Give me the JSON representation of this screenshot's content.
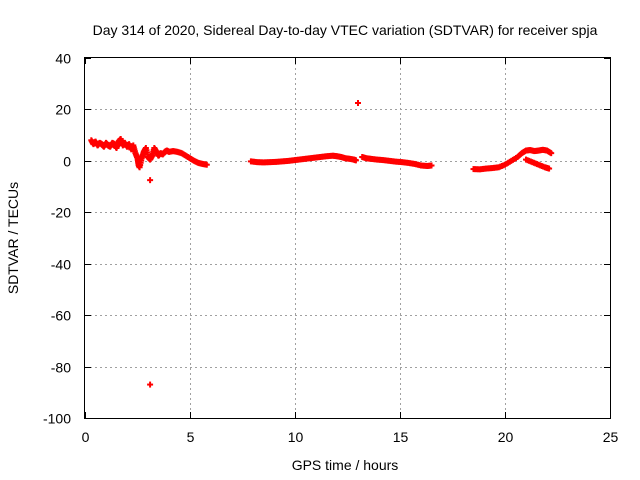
{
  "chart_data": {
    "type": "scatter",
    "title": "Day 314 of 2020, Sidereal Day-to-day VTEC variation (SDTVAR) for receiver spja",
    "xlabel": "GPS time / hours",
    "ylabel": "SDTVAR / TECUs",
    "xlim": [
      0,
      25
    ],
    "ylim": [
      -100,
      40
    ],
    "xticks": [
      0,
      5,
      10,
      15,
      20,
      25
    ],
    "yticks": [
      -100,
      -80,
      -60,
      -40,
      -20,
      0,
      20,
      40
    ],
    "grid": true,
    "marker": "+",
    "color": "#ff0000",
    "series": [
      {
        "name": "SDTVAR",
        "points": [
          [
            0.3,
            8.0
          ],
          [
            0.4,
            6.5
          ],
          [
            0.5,
            7.5
          ],
          [
            0.6,
            6.0
          ],
          [
            0.7,
            7.0
          ],
          [
            0.8,
            6.5
          ],
          [
            0.9,
            5.5
          ],
          [
            1.0,
            7.0
          ],
          [
            1.1,
            6.0
          ],
          [
            1.2,
            5.5
          ],
          [
            1.3,
            7.0
          ],
          [
            1.4,
            6.5
          ],
          [
            1.5,
            5.0
          ],
          [
            1.6,
            7.5
          ],
          [
            1.7,
            8.5
          ],
          [
            1.8,
            6.0
          ],
          [
            1.9,
            7.0
          ],
          [
            2.0,
            5.5
          ],
          [
            2.1,
            6.5
          ],
          [
            2.2,
            4.5
          ],
          [
            2.3,
            6.0
          ],
          [
            2.4,
            3.0
          ],
          [
            2.5,
            1.0
          ],
          [
            2.55,
            -1.5
          ],
          [
            2.6,
            -2.5
          ],
          [
            2.7,
            1.0
          ],
          [
            2.8,
            3.5
          ],
          [
            2.9,
            5.0
          ],
          [
            3.0,
            1.5
          ],
          [
            3.1,
            0.5
          ],
          [
            3.2,
            2.0
          ],
          [
            3.3,
            5.0
          ],
          [
            3.4,
            3.5
          ],
          [
            3.5,
            2.0
          ],
          [
            3.6,
            3.0
          ],
          [
            3.7,
            2.5
          ],
          [
            3.8,
            3.5
          ],
          [
            3.9,
            4.0
          ],
          [
            4.0,
            3.5
          ],
          [
            4.2,
            3.8
          ],
          [
            4.4,
            3.5
          ],
          [
            4.6,
            3.0
          ],
          [
            4.8,
            2.0
          ],
          [
            5.0,
            1.0
          ],
          [
            5.2,
            0.0
          ],
          [
            5.4,
            -0.8
          ],
          [
            5.6,
            -1.2
          ],
          [
            5.8,
            -1.5
          ],
          [
            3.1,
            -7.5
          ],
          [
            3.1,
            -87.0
          ],
          [
            7.9,
            -0.2
          ],
          [
            8.2,
            -0.5
          ],
          [
            8.5,
            -0.6
          ],
          [
            8.8,
            -0.5
          ],
          [
            9.1,
            -0.4
          ],
          [
            9.4,
            -0.2
          ],
          [
            9.7,
            0.0
          ],
          [
            10.0,
            0.3
          ],
          [
            10.3,
            0.6
          ],
          [
            10.6,
            0.9
          ],
          [
            10.9,
            1.2
          ],
          [
            11.2,
            1.5
          ],
          [
            11.5,
            1.8
          ],
          [
            11.8,
            2.0
          ],
          [
            12.0,
            1.8
          ],
          [
            12.2,
            1.5
          ],
          [
            12.4,
            1.0
          ],
          [
            12.6,
            0.8
          ],
          [
            12.8,
            0.5
          ],
          [
            12.9,
            0.2
          ],
          [
            13.0,
            22.5
          ],
          [
            13.2,
            1.5
          ],
          [
            13.4,
            1.0
          ],
          [
            13.6,
            0.8
          ],
          [
            13.9,
            0.5
          ],
          [
            14.2,
            0.3
          ],
          [
            14.5,
            0.0
          ],
          [
            14.8,
            -0.3
          ],
          [
            15.1,
            -0.5
          ],
          [
            15.4,
            -0.8
          ],
          [
            15.7,
            -1.2
          ],
          [
            16.0,
            -1.8
          ],
          [
            16.3,
            -2.0
          ],
          [
            16.5,
            -1.8
          ],
          [
            18.5,
            -3.2
          ],
          [
            18.8,
            -3.3
          ],
          [
            19.1,
            -3.0
          ],
          [
            19.4,
            -2.8
          ],
          [
            19.7,
            -2.5
          ],
          [
            20.0,
            -1.5
          ],
          [
            20.3,
            0.0
          ],
          [
            20.6,
            1.5
          ],
          [
            20.8,
            3.0
          ],
          [
            21.0,
            4.0
          ],
          [
            21.2,
            4.2
          ],
          [
            21.4,
            3.8
          ],
          [
            21.6,
            4.0
          ],
          [
            21.8,
            4.3
          ],
          [
            22.0,
            4.0
          ],
          [
            22.2,
            3.0
          ],
          [
            21.0,
            0.5
          ],
          [
            21.3,
            -0.5
          ],
          [
            21.6,
            -1.5
          ],
          [
            21.9,
            -2.5
          ],
          [
            22.1,
            -3.0
          ]
        ]
      }
    ]
  }
}
